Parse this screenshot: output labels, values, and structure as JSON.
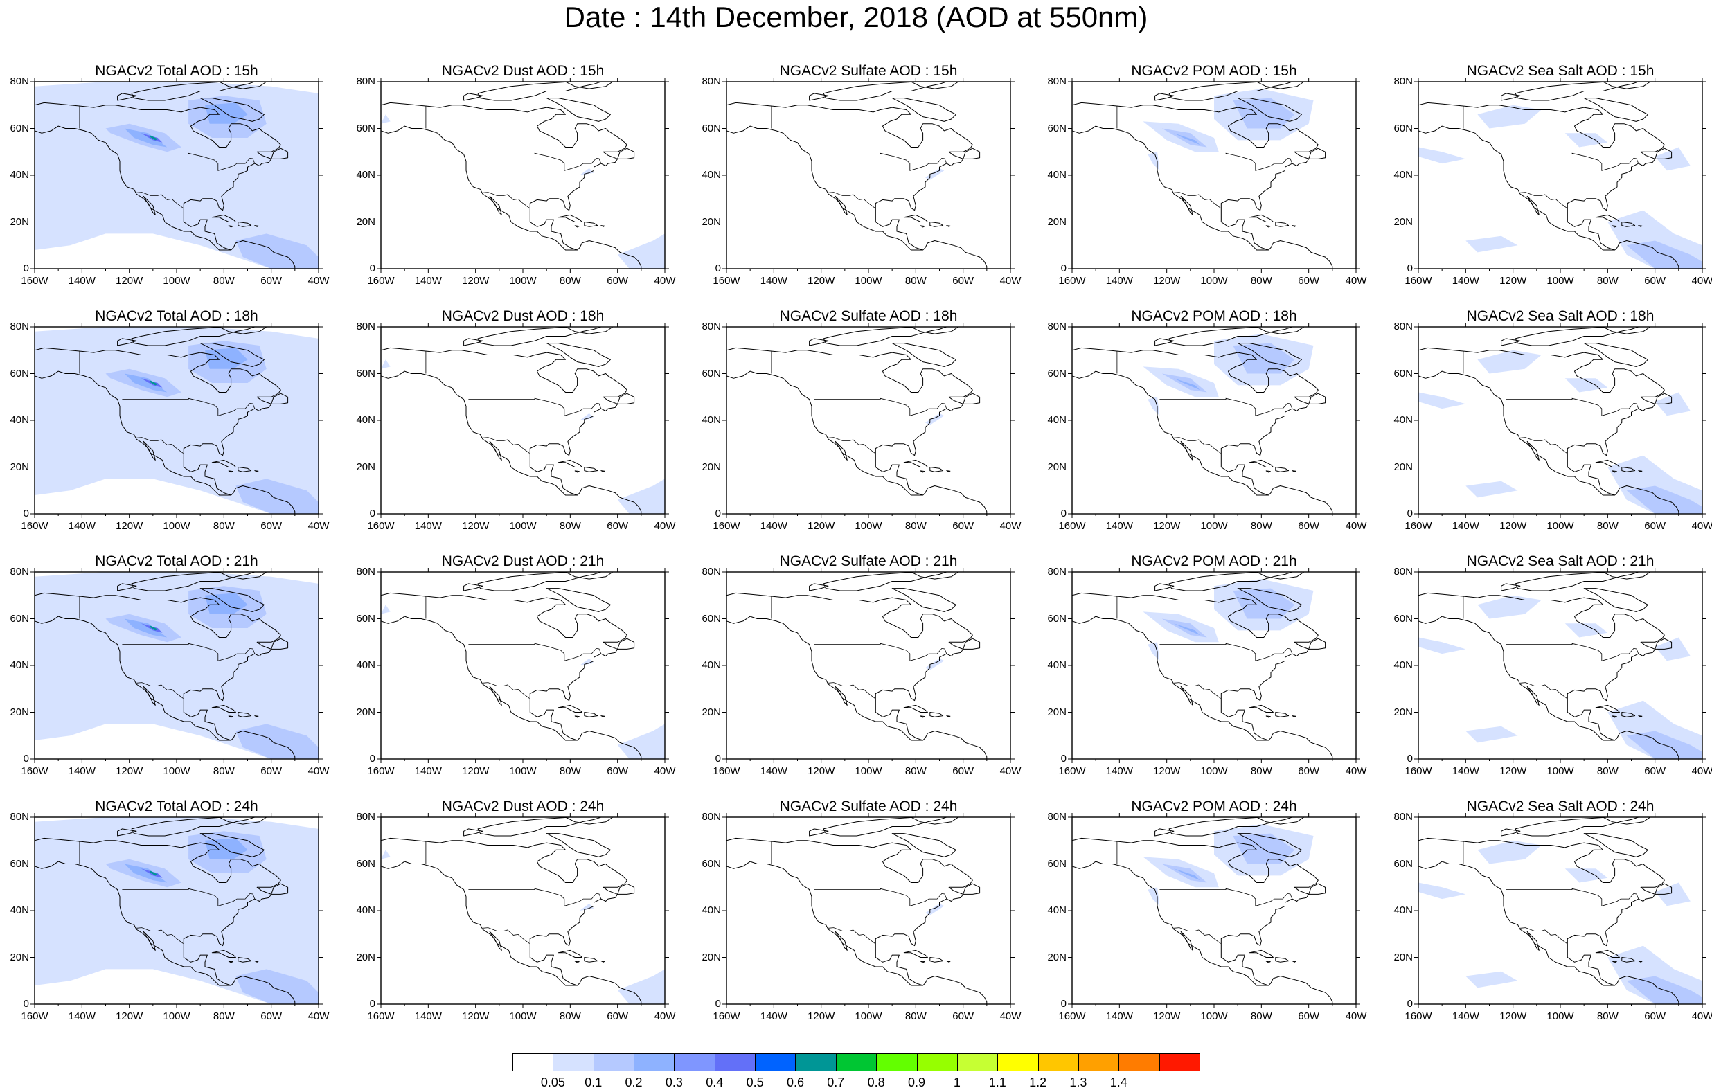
{
  "title": "Date : 14th December, 2018 (AOD at 550nm)",
  "lat_ticks": [
    "80N",
    "60N",
    "40N",
    "20N",
    "0"
  ],
  "lon_ticks": [
    "160W",
    "140W",
    "120W",
    "100W",
    "80W",
    "60W",
    "40W"
  ],
  "rows": [
    {
      "hour": "15h",
      "panels": [
        {
          "title": "NGACv2 Total AOD : 15h",
          "variable": "Total"
        },
        {
          "title": "NGACv2 Dust AOD : 15h",
          "variable": "Dust"
        },
        {
          "title": "NGACv2 Sulfate AOD : 15h",
          "variable": "Sulfate"
        },
        {
          "title": "NGACv2 POM AOD : 15h",
          "variable": "POM"
        },
        {
          "title": "NGACv2 Sea Salt AOD : 15h",
          "variable": "SeaSalt"
        }
      ]
    },
    {
      "hour": "18h",
      "panels": [
        {
          "title": "NGACv2 Total AOD : 18h",
          "variable": "Total"
        },
        {
          "title": "NGACv2 Dust AOD : 18h",
          "variable": "Dust"
        },
        {
          "title": "NGACv2 Sulfate AOD : 18h",
          "variable": "Sulfate"
        },
        {
          "title": "NGACv2 POM AOD : 18h",
          "variable": "POM"
        },
        {
          "title": "NGACv2 Sea Salt AOD : 18h",
          "variable": "SeaSalt"
        }
      ]
    },
    {
      "hour": "21h",
      "panels": [
        {
          "title": "NGACv2 Total AOD : 21h",
          "variable": "Total"
        },
        {
          "title": "NGACv2 Dust AOD : 21h",
          "variable": "Dust"
        },
        {
          "title": "NGACv2 Sulfate AOD : 21h",
          "variable": "Sulfate"
        },
        {
          "title": "NGACv2 POM AOD : 21h",
          "variable": "POM"
        },
        {
          "title": "NGACv2 Sea Salt AOD : 21h",
          "variable": "SeaSalt"
        }
      ]
    },
    {
      "hour": "24h",
      "panels": [
        {
          "title": "NGACv2 Total AOD : 24h",
          "variable": "Total"
        },
        {
          "title": "NGACv2 Dust AOD : 24h",
          "variable": "Dust"
        },
        {
          "title": "NGACv2 Sulfate AOD : 24h",
          "variable": "Sulfate"
        },
        {
          "title": "NGACv2 POM AOD : 24h",
          "variable": "POM"
        },
        {
          "title": "NGACv2 Sea Salt  AOD : 24h",
          "variable": "SeaSalt"
        }
      ]
    }
  ],
  "colorbar": {
    "labels": [
      "0.05",
      "0.1",
      "0.2",
      "0.3",
      "0.4",
      "0.5",
      "0.6",
      "0.7",
      "0.8",
      "0.9",
      "1",
      "1.1",
      "1.2",
      "1.3",
      "1.4"
    ],
    "colors": [
      "#ffffff",
      "#d6e2ff",
      "#b5c9ff",
      "#8eb2ff",
      "#7f96ff",
      "#6370f8",
      "#0063ff",
      "#009696",
      "#00c633",
      "#63ff00",
      "#96ff00",
      "#c6ff33",
      "#ffff00",
      "#ffc600",
      "#ffa000",
      "#ff7c00",
      "#ff1900"
    ]
  },
  "shading": {
    "light": "#d6e2ff",
    "medium": "#b5c9ff",
    "strong": "#8eb2ff",
    "deep": "#6370f8",
    "peak": "#009696"
  }
}
